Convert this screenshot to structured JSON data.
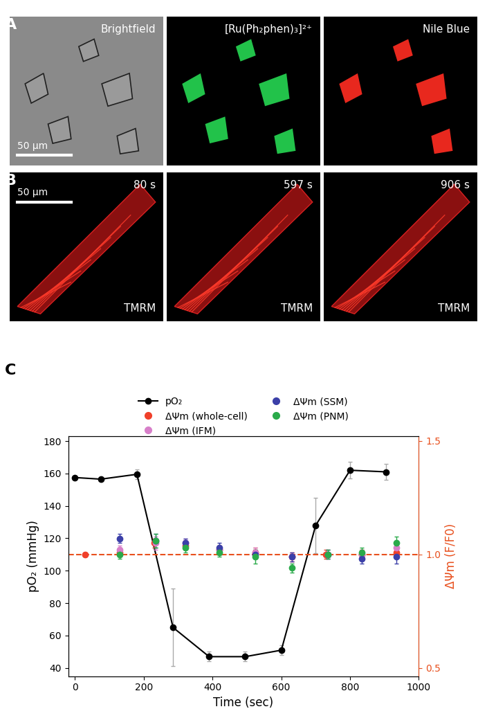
{
  "panel_A": {
    "label": "A",
    "images": [
      {
        "title": "Brightfield",
        "scale_bar": "50 μm"
      },
      {
        "title": "[Ru(Ph₂phen)₃]²⁺"
      },
      {
        "title": "Nile Blue"
      }
    ]
  },
  "panel_B": {
    "label": "B",
    "images": [
      {
        "time": "80 s",
        "stain": "TMRM",
        "scale_bar": "50 μm"
      },
      {
        "time": "597 s",
        "stain": "TMRM"
      },
      {
        "time": "906 s",
        "stain": "TMRM"
      }
    ]
  },
  "chart_data": {
    "type": "line",
    "label": "C",
    "x_label": "Time (sec)",
    "y_label": "pO₂ (mmHg)",
    "y2_label": "ΔΨm (F/F0)",
    "xlim": [
      -20,
      1000
    ],
    "xticks": [
      0,
      200,
      400,
      600,
      800,
      1000
    ],
    "ylim": [
      35,
      183
    ],
    "yticks": [
      40,
      60,
      80,
      100,
      120,
      140,
      160,
      180
    ],
    "y2lim": [
      0.464,
      1.521
    ],
    "y2ticks": [
      0.5,
      1.0,
      1.5
    ],
    "reference_line": {
      "value": 1.0,
      "axis": "y2",
      "color": "#e8501e",
      "line_style": "dashed"
    },
    "legend": "upper center",
    "series": [
      {
        "name": "pO₂",
        "type": "line",
        "marker": "o",
        "color": "#000000",
        "x": [
          0,
          75,
          180,
          285,
          390,
          495,
          600,
          700,
          800,
          905
        ],
        "values": [
          157.5,
          156.5,
          159.5,
          65,
          47,
          47,
          51,
          128,
          162,
          161
        ],
        "errors": [
          0,
          0,
          3,
          24,
          3,
          3,
          3,
          17,
          5,
          5
        ]
      },
      {
        "name": "ΔΨm (whole-cell)",
        "type": "scatter",
        "marker": "o",
        "color": "#f0402a",
        "axis": "y2",
        "x": [
          30,
          130,
          230,
          320,
          420,
          525,
          630,
          730,
          835,
          935
        ],
        "values": [
          1.0,
          1.01,
          1.05,
          1.04,
          1.02,
          1.01,
          0.99,
          1.0,
          1.0,
          1.01
        ],
        "errors": [
          0.01,
          0.02,
          0.02,
          0.02,
          0.02,
          0.02,
          0.02,
          0.02,
          0.02,
          0.02
        ]
      },
      {
        "name": "ΔΨm (IFM)",
        "type": "scatter",
        "marker": "o",
        "color": "#d77fc9",
        "axis": "y2",
        "x": [
          130,
          235,
          320,
          420,
          525,
          630,
          735,
          835,
          935
        ],
        "values": [
          1.02,
          1.05,
          1.05,
          1.02,
          1.01,
          0.99,
          1.0,
          1.0,
          1.03
        ],
        "errors": [
          0.02,
          0.03,
          0.02,
          0.02,
          0.02,
          0.02,
          0.02,
          0.02,
          0.03
        ]
      },
      {
        "name": "ΔΨm (SSM)",
        "type": "scatter",
        "marker": "o",
        "color": "#3b3fa8",
        "axis": "y2",
        "x": [
          130,
          235,
          320,
          420,
          525,
          630,
          735,
          835,
          935
        ],
        "values": [
          1.07,
          1.06,
          1.05,
          1.03,
          1.0,
          0.99,
          1.0,
          0.98,
          0.99
        ],
        "errors": [
          0.02,
          0.03,
          0.02,
          0.02,
          0.02,
          0.02,
          0.02,
          0.02,
          0.03
        ]
      },
      {
        "name": "ΔΨm (PNM)",
        "type": "scatter",
        "marker": "o",
        "color": "#2aaa4a",
        "axis": "y2",
        "x": [
          130,
          235,
          320,
          420,
          525,
          630,
          735,
          835,
          935
        ],
        "values": [
          1.0,
          1.06,
          1.03,
          1.01,
          0.99,
          0.94,
          1.0,
          1.01,
          1.05
        ],
        "errors": [
          0.02,
          0.03,
          0.02,
          0.02,
          0.03,
          0.02,
          0.02,
          0.02,
          0.03
        ]
      }
    ]
  }
}
